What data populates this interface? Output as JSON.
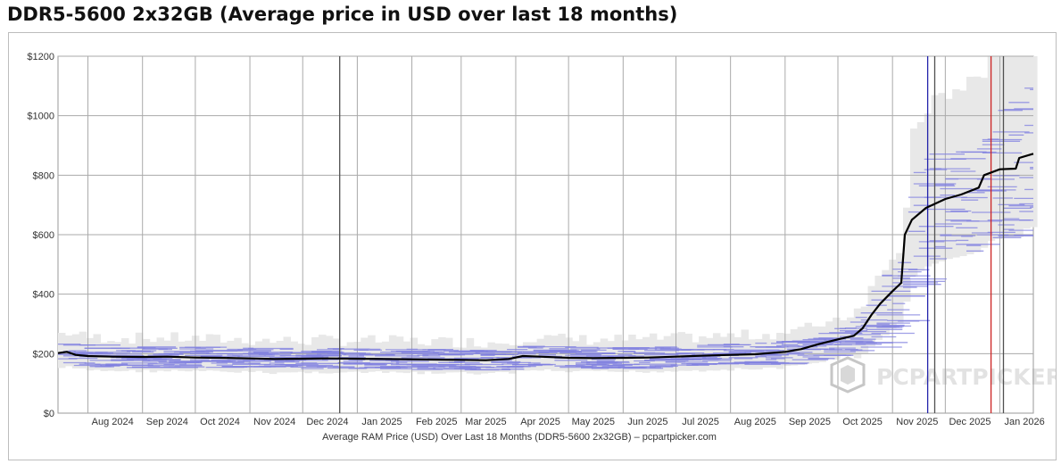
{
  "chart_data": {
    "type": "line",
    "title": "DDR5-5600 2x32GB (Average price in USD over last 18 months)",
    "xlabel": "Average RAM Price (USD) Over Last 18 Months (DDR5-5600 2x32GB) – pcpartpicker.com",
    "ylabel": "",
    "ylim": [
      0,
      1200
    ],
    "y_ticks": [
      "$0",
      "$200",
      "$400",
      "$600",
      "$800",
      "$1000",
      "$1200"
    ],
    "x_ticks": [
      "Aug 2024",
      "Sep 2024",
      "Oct 2024",
      "Nov 2024",
      "Dec 2024",
      "Jan 2025",
      "Feb 2025",
      "Mar 2025",
      "Apr 2025",
      "May 2025",
      "Jun 2025",
      "Jul 2025",
      "Aug 2025",
      "Sep 2025",
      "Oct 2025",
      "Nov 2025",
      "Dec 2025",
      "Jan 2026"
    ],
    "grid": true,
    "watermark": "PCPARTPICKER",
    "series": [
      {
        "name": "",
        "color": "#000000",
        "points": [
          [
            "2024-07-15",
            202
          ],
          [
            "2024-07-20",
            206
          ],
          [
            "2024-07-25",
            196
          ],
          [
            "2024-08-01",
            192
          ],
          [
            "2024-08-15",
            190
          ],
          [
            "2024-09-01",
            189
          ],
          [
            "2024-09-15",
            190
          ],
          [
            "2024-10-01",
            187
          ],
          [
            "2024-10-15",
            186
          ],
          [
            "2024-11-01",
            184
          ],
          [
            "2024-11-15",
            182
          ],
          [
            "2024-12-01",
            183
          ],
          [
            "2024-12-15",
            184
          ],
          [
            "2025-01-01",
            183
          ],
          [
            "2025-01-15",
            182
          ],
          [
            "2025-02-01",
            181
          ],
          [
            "2025-02-15",
            180
          ],
          [
            "2025-03-01",
            179
          ],
          [
            "2025-03-15",
            178
          ],
          [
            "2025-03-28",
            182
          ],
          [
            "2025-04-05",
            192
          ],
          [
            "2025-04-15",
            190
          ],
          [
            "2025-05-01",
            186
          ],
          [
            "2025-05-15",
            185
          ],
          [
            "2025-06-01",
            186
          ],
          [
            "2025-06-15",
            187
          ],
          [
            "2025-07-01",
            190
          ],
          [
            "2025-07-15",
            193
          ],
          [
            "2025-08-01",
            196
          ],
          [
            "2025-08-15",
            198
          ],
          [
            "2025-09-01",
            206
          ],
          [
            "2025-09-10",
            215
          ],
          [
            "2025-09-20",
            232
          ],
          [
            "2025-10-01",
            248
          ],
          [
            "2025-10-10",
            260
          ],
          [
            "2025-10-15",
            285
          ],
          [
            "2025-10-20",
            330
          ],
          [
            "2025-10-25",
            368
          ],
          [
            "2025-11-01",
            410
          ],
          [
            "2025-11-06",
            438
          ],
          [
            "2025-11-08",
            600
          ],
          [
            "2025-11-12",
            650
          ],
          [
            "2025-11-20",
            690
          ],
          [
            "2025-12-01",
            720
          ],
          [
            "2025-12-10",
            735
          ],
          [
            "2025-12-20",
            758
          ],
          [
            "2025-12-23",
            800
          ],
          [
            "2026-01-01",
            820
          ],
          [
            "2026-01-10",
            822
          ],
          [
            "2026-01-12",
            858
          ],
          [
            "2026-01-20",
            872
          ]
        ]
      }
    ],
    "markers": [
      {
        "date": "2024-12-22",
        "color": "#505050"
      },
      {
        "date": "2025-11-21",
        "color": "#2222aa"
      },
      {
        "date": "2025-11-25",
        "color": "#505050"
      },
      {
        "date": "2025-12-27",
        "color": "#cc2222"
      },
      {
        "date": "2026-01-03",
        "color": "#505050"
      }
    ],
    "colors": {
      "price_band": "#e8e8e8",
      "retailer_lines": "#8080e0",
      "grid": "#aaaaaa"
    }
  }
}
